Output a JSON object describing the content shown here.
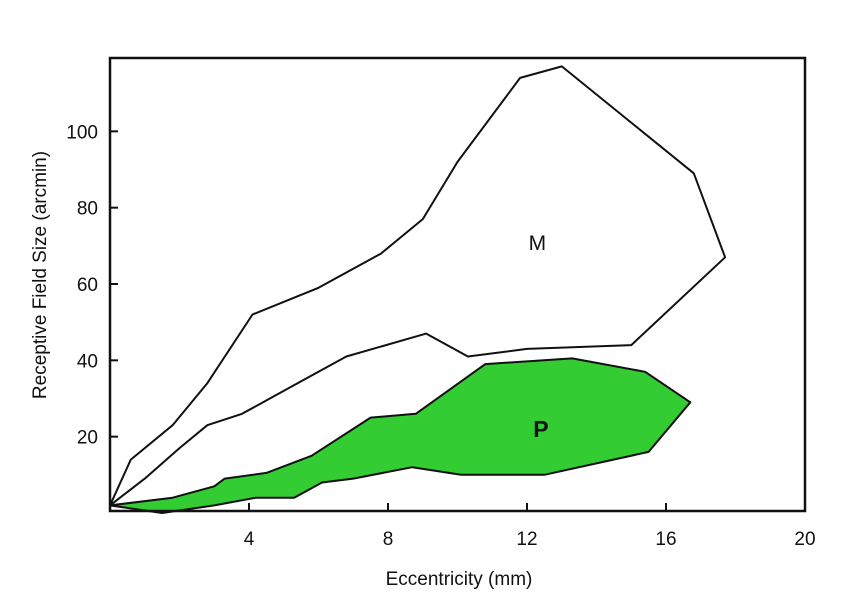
{
  "chart_data": {
    "type": "area",
    "title": "",
    "xlabel": "Eccentricity (mm)",
    "ylabel": "Receptive Field Size (arcmin)",
    "xlim": [
      0,
      20
    ],
    "ylim": [
      0,
      120
    ],
    "xticks": [
      {
        "value": 4,
        "label": "4"
      },
      {
        "value": 8,
        "label": "8"
      },
      {
        "value": 12,
        "label": "12"
      },
      {
        "value": 16,
        "label": "16"
      },
      {
        "value": 20,
        "label": "20"
      }
    ],
    "yticks": [
      {
        "value": 20,
        "label": "20"
      },
      {
        "value": 40,
        "label": "40"
      },
      {
        "value": 60,
        "label": "60"
      },
      {
        "value": 80,
        "label": "80"
      },
      {
        "value": 100,
        "label": "100"
      }
    ],
    "grid": false,
    "legend": "none",
    "series": [
      {
        "name": "M",
        "label": "M",
        "label_position": [
          12.3,
          71
        ],
        "fill": "#ffffff",
        "stroke": "#111111",
        "upper": [
          [
            0,
            2
          ],
          [
            0.6,
            14
          ],
          [
            1.8,
            23
          ],
          [
            2.8,
            34
          ],
          [
            4.1,
            52
          ],
          [
            6,
            59
          ],
          [
            7.8,
            68
          ],
          [
            9,
            77
          ],
          [
            10,
            92
          ],
          [
            11.8,
            114
          ],
          [
            13,
            117
          ],
          [
            16.8,
            89
          ],
          [
            17.7,
            67
          ]
        ],
        "lower": [
          [
            0,
            2
          ],
          [
            1,
            9
          ],
          [
            2,
            17
          ],
          [
            2.8,
            23
          ],
          [
            3.8,
            26
          ],
          [
            5.2,
            33
          ],
          [
            6.8,
            41
          ],
          [
            9.1,
            47
          ],
          [
            10.3,
            41
          ],
          [
            12,
            43
          ],
          [
            15,
            44
          ],
          [
            17.7,
            67
          ]
        ]
      },
      {
        "name": "P",
        "label": "P",
        "label_position": [
          12.4,
          22
        ],
        "fill": "#33cc33",
        "stroke": "#111111",
        "upper": [
          [
            0,
            2
          ],
          [
            1.8,
            4
          ],
          [
            3,
            7
          ],
          [
            3.3,
            9
          ],
          [
            4.5,
            10.5
          ],
          [
            5.8,
            15
          ],
          [
            7.5,
            25
          ],
          [
            8.8,
            26
          ],
          [
            10.8,
            39
          ],
          [
            13.3,
            40.5
          ],
          [
            15.4,
            37
          ],
          [
            16.7,
            29
          ]
        ],
        "lower": [
          [
            0,
            2
          ],
          [
            1.5,
            0
          ],
          [
            3,
            2
          ],
          [
            4.2,
            4
          ],
          [
            5.3,
            4
          ],
          [
            6.1,
            8
          ],
          [
            7,
            9
          ],
          [
            8.7,
            12
          ],
          [
            10.1,
            10
          ],
          [
            12.5,
            10
          ],
          [
            15.5,
            16
          ],
          [
            16.7,
            29
          ]
        ]
      }
    ]
  }
}
